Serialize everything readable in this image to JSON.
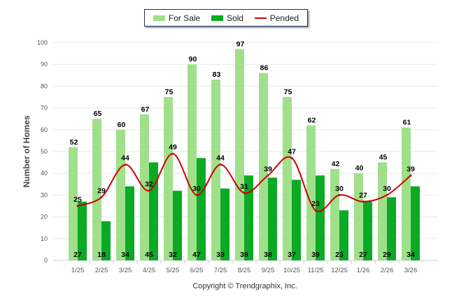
{
  "chart_data": {
    "type": "bar",
    "title": "",
    "xlabel": "",
    "ylabel": "Number of Homes",
    "ylim": [
      0,
      100
    ],
    "yticks": [
      0,
      10,
      20,
      30,
      40,
      50,
      60,
      70,
      80,
      90,
      100
    ],
    "grid": true,
    "legend_placement": "top-center",
    "categories": [
      "1/25",
      "2/25",
      "3/25",
      "4/25",
      "5/25",
      "6/25",
      "7/25",
      "8/25",
      "9/25",
      "10/25",
      "11/25",
      "12/25",
      "1/26",
      "2/26",
      "3/26"
    ],
    "series": [
      {
        "name": "For Sale",
        "type": "bar",
        "color": "#a0e08a",
        "values": [
          52,
          65,
          60,
          67,
          75,
          90,
          83,
          97,
          86,
          75,
          62,
          42,
          40,
          45,
          61
        ]
      },
      {
        "name": "Sold",
        "type": "bar",
        "color": "#0aaa24",
        "values": [
          27,
          18,
          34,
          45,
          32,
          47,
          33,
          39,
          38,
          37,
          39,
          23,
          27,
          29,
          34
        ]
      },
      {
        "name": "Pended",
        "type": "line",
        "color": "#cc0000",
        "values": [
          25,
          29,
          44,
          32,
          49,
          30,
          44,
          31,
          39,
          47,
          23,
          30,
          27,
          30,
          39
        ]
      }
    ],
    "footer": "Copyright © Trendgraphix, Inc."
  }
}
